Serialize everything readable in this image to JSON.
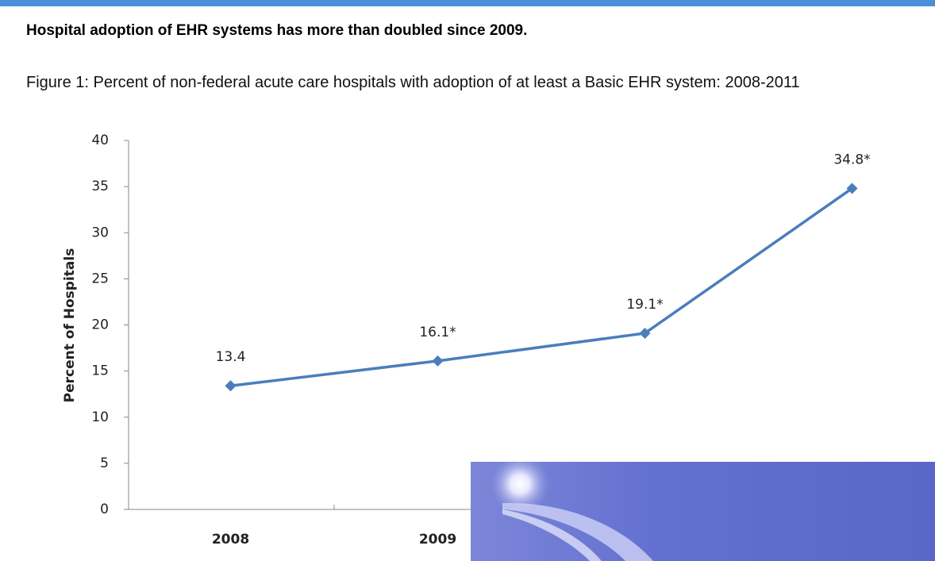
{
  "chart_data": {
    "type": "line",
    "title": "Hospital adoption of EHR systems has more than doubled since 2009.",
    "subtitle": "Figure 1: Percent of non-federal acute care hospitals with adoption of at least a Basic EHR system: 2008-2011",
    "y_label": "Percent of Hospitals",
    "categories": [
      "2008",
      "2009",
      null,
      null
    ],
    "values": [
      13.4,
      16.1,
      19.1,
      34.8
    ],
    "value_labels": [
      "13.4",
      "16.1*",
      "19.1*",
      "34.8*"
    ],
    "color": "#4a7ebb",
    "ylim": [
      0,
      40
    ],
    "yticks": [
      0,
      5,
      10,
      15,
      20,
      25,
      30,
      35,
      40
    ],
    "grid": false
  }
}
